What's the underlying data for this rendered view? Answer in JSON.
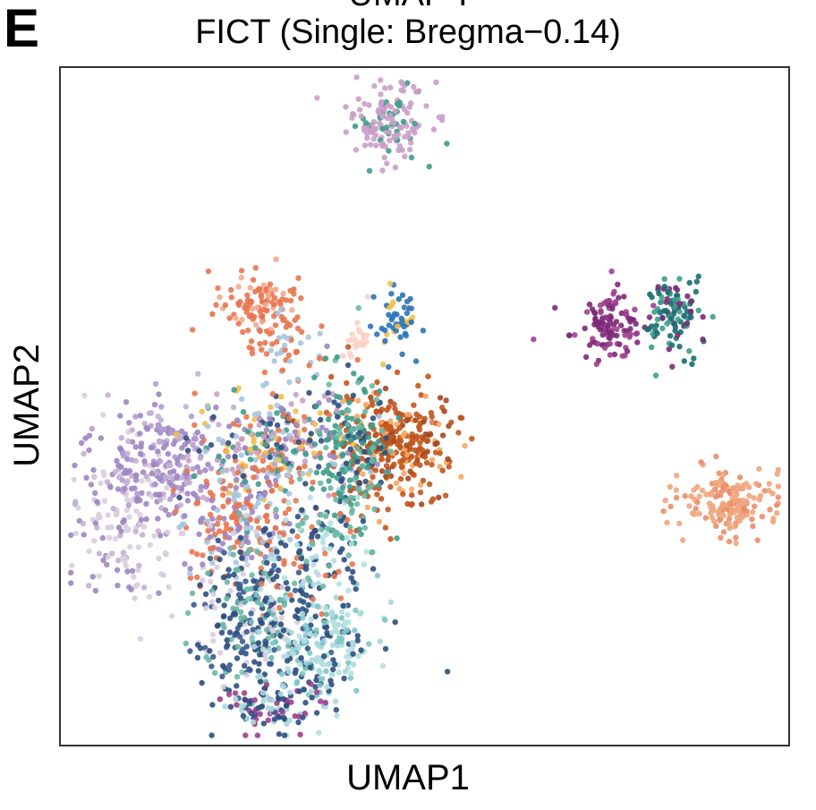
{
  "panel": {
    "letter": "E",
    "partial_title": "UMAP-I"
  },
  "chart_data": {
    "type": "scatter",
    "title": "FICT (Single: Bregma−0.14)",
    "xlabel": "UMAP1",
    "ylabel": "UMAP2",
    "xlim": [
      0,
      100
    ],
    "ylim": [
      0,
      100
    ],
    "grid": false,
    "legend": "none",
    "clusters": [
      {
        "cx": 45,
        "cy": 92,
        "sx": 2.8,
        "sy": 3.0,
        "n": 150,
        "colors": [
          "#c9a0c8",
          "#c9a0c8",
          "#c9a0c8",
          "#3d9d8a"
        ]
      },
      {
        "cx": 27,
        "cy": 65,
        "sx": 2.6,
        "sy": 2.4,
        "n": 110,
        "colors": [
          "#e8764f",
          "#e8764f",
          "#e8764f",
          "#f5a98a"
        ]
      },
      {
        "cx": 31,
        "cy": 58,
        "sx": 3.0,
        "sy": 3.0,
        "n": 50,
        "colors": [
          "#e8764f",
          "#a7c5df"
        ]
      },
      {
        "cx": 46,
        "cy": 63,
        "sx": 1.6,
        "sy": 2.4,
        "n": 55,
        "colors": [
          "#2b73b9",
          "#2b73b9",
          "#2b73b9",
          "#f0c04b"
        ]
      },
      {
        "cx": 75,
        "cy": 62,
        "sx": 2.5,
        "sy": 2.5,
        "n": 110,
        "colors": [
          "#7c2a77",
          "#7c2a77",
          "#9e3f8e"
        ]
      },
      {
        "cx": 84,
        "cy": 64,
        "sx": 2.0,
        "sy": 2.8,
        "n": 110,
        "colors": [
          "#196e72",
          "#196e72",
          "#3d9d8a",
          "#7c2a77"
        ]
      },
      {
        "cx": 46,
        "cy": 44,
        "sx": 4.2,
        "sy": 4.2,
        "n": 320,
        "colors": [
          "#c2551d",
          "#c2551d",
          "#c2551d",
          "#f5a762",
          "#a5481c"
        ]
      },
      {
        "cx": 92,
        "cy": 36,
        "sx": 3.5,
        "sy": 2.4,
        "n": 160,
        "colors": [
          "#f0a57c",
          "#f0a57c",
          "#e98e69"
        ]
      },
      {
        "cx": 41,
        "cy": 60,
        "sx": 0.9,
        "sy": 1.8,
        "n": 22,
        "colors": [
          "#fbd2c4"
        ]
      },
      {
        "cx": 9,
        "cy": 33,
        "sx": 3.8,
        "sy": 6.5,
        "n": 180,
        "colors": [
          "#d9cde0",
          "#d9cde0",
          "#c4afd2",
          "#9e86c2"
        ]
      },
      {
        "cx": 15,
        "cy": 42,
        "sx": 4.0,
        "sy": 4.5,
        "n": 200,
        "colors": [
          "#9e86c2",
          "#9e86c2",
          "#b49ad1",
          "#c4afd2"
        ]
      },
      {
        "cx": 30,
        "cy": 44,
        "sx": 5.5,
        "sy": 4.5,
        "n": 340,
        "colors": [
          "#a7c5df",
          "#e8764f",
          "#3d9d8a",
          "#9e86c2",
          "#2e4f7f",
          "#f0c04b",
          "#c9a0c8"
        ]
      },
      {
        "cx": 40,
        "cy": 43,
        "sx": 2.6,
        "sy": 6.0,
        "n": 170,
        "colors": [
          "#3d9d8a",
          "#3d9d8a",
          "#6ab8a5",
          "#2e4f7f"
        ]
      },
      {
        "cx": 24,
        "cy": 33,
        "sx": 3.5,
        "sy": 4.5,
        "n": 200,
        "colors": [
          "#e8764f",
          "#e8764f",
          "#9e86c2",
          "#a7c5df"
        ]
      },
      {
        "cx": 27,
        "cy": 19,
        "sx": 4.5,
        "sy": 5.5,
        "n": 320,
        "colors": [
          "#2e4f7f",
          "#2e4f7f",
          "#3a5c8f",
          "#6ab8a5",
          "#d9cde0"
        ]
      },
      {
        "cx": 36,
        "cy": 15,
        "sx": 4.0,
        "sy": 4.5,
        "n": 220,
        "colors": [
          "#b3e0e0",
          "#a8d8dc",
          "#7cc7c9",
          "#2e4f7f"
        ]
      },
      {
        "cx": 34,
        "cy": 29,
        "sx": 4.5,
        "sy": 4.0,
        "n": 140,
        "colors": [
          "#2e4f7f",
          "#e8764f",
          "#6ab8a5",
          "#b3e0e0"
        ]
      },
      {
        "cx": 29,
        "cy": 6,
        "sx": 3.5,
        "sy": 2.2,
        "n": 110,
        "colors": [
          "#2e4f7f",
          "#9e3f8e",
          "#a8d8dc"
        ]
      }
    ]
  }
}
